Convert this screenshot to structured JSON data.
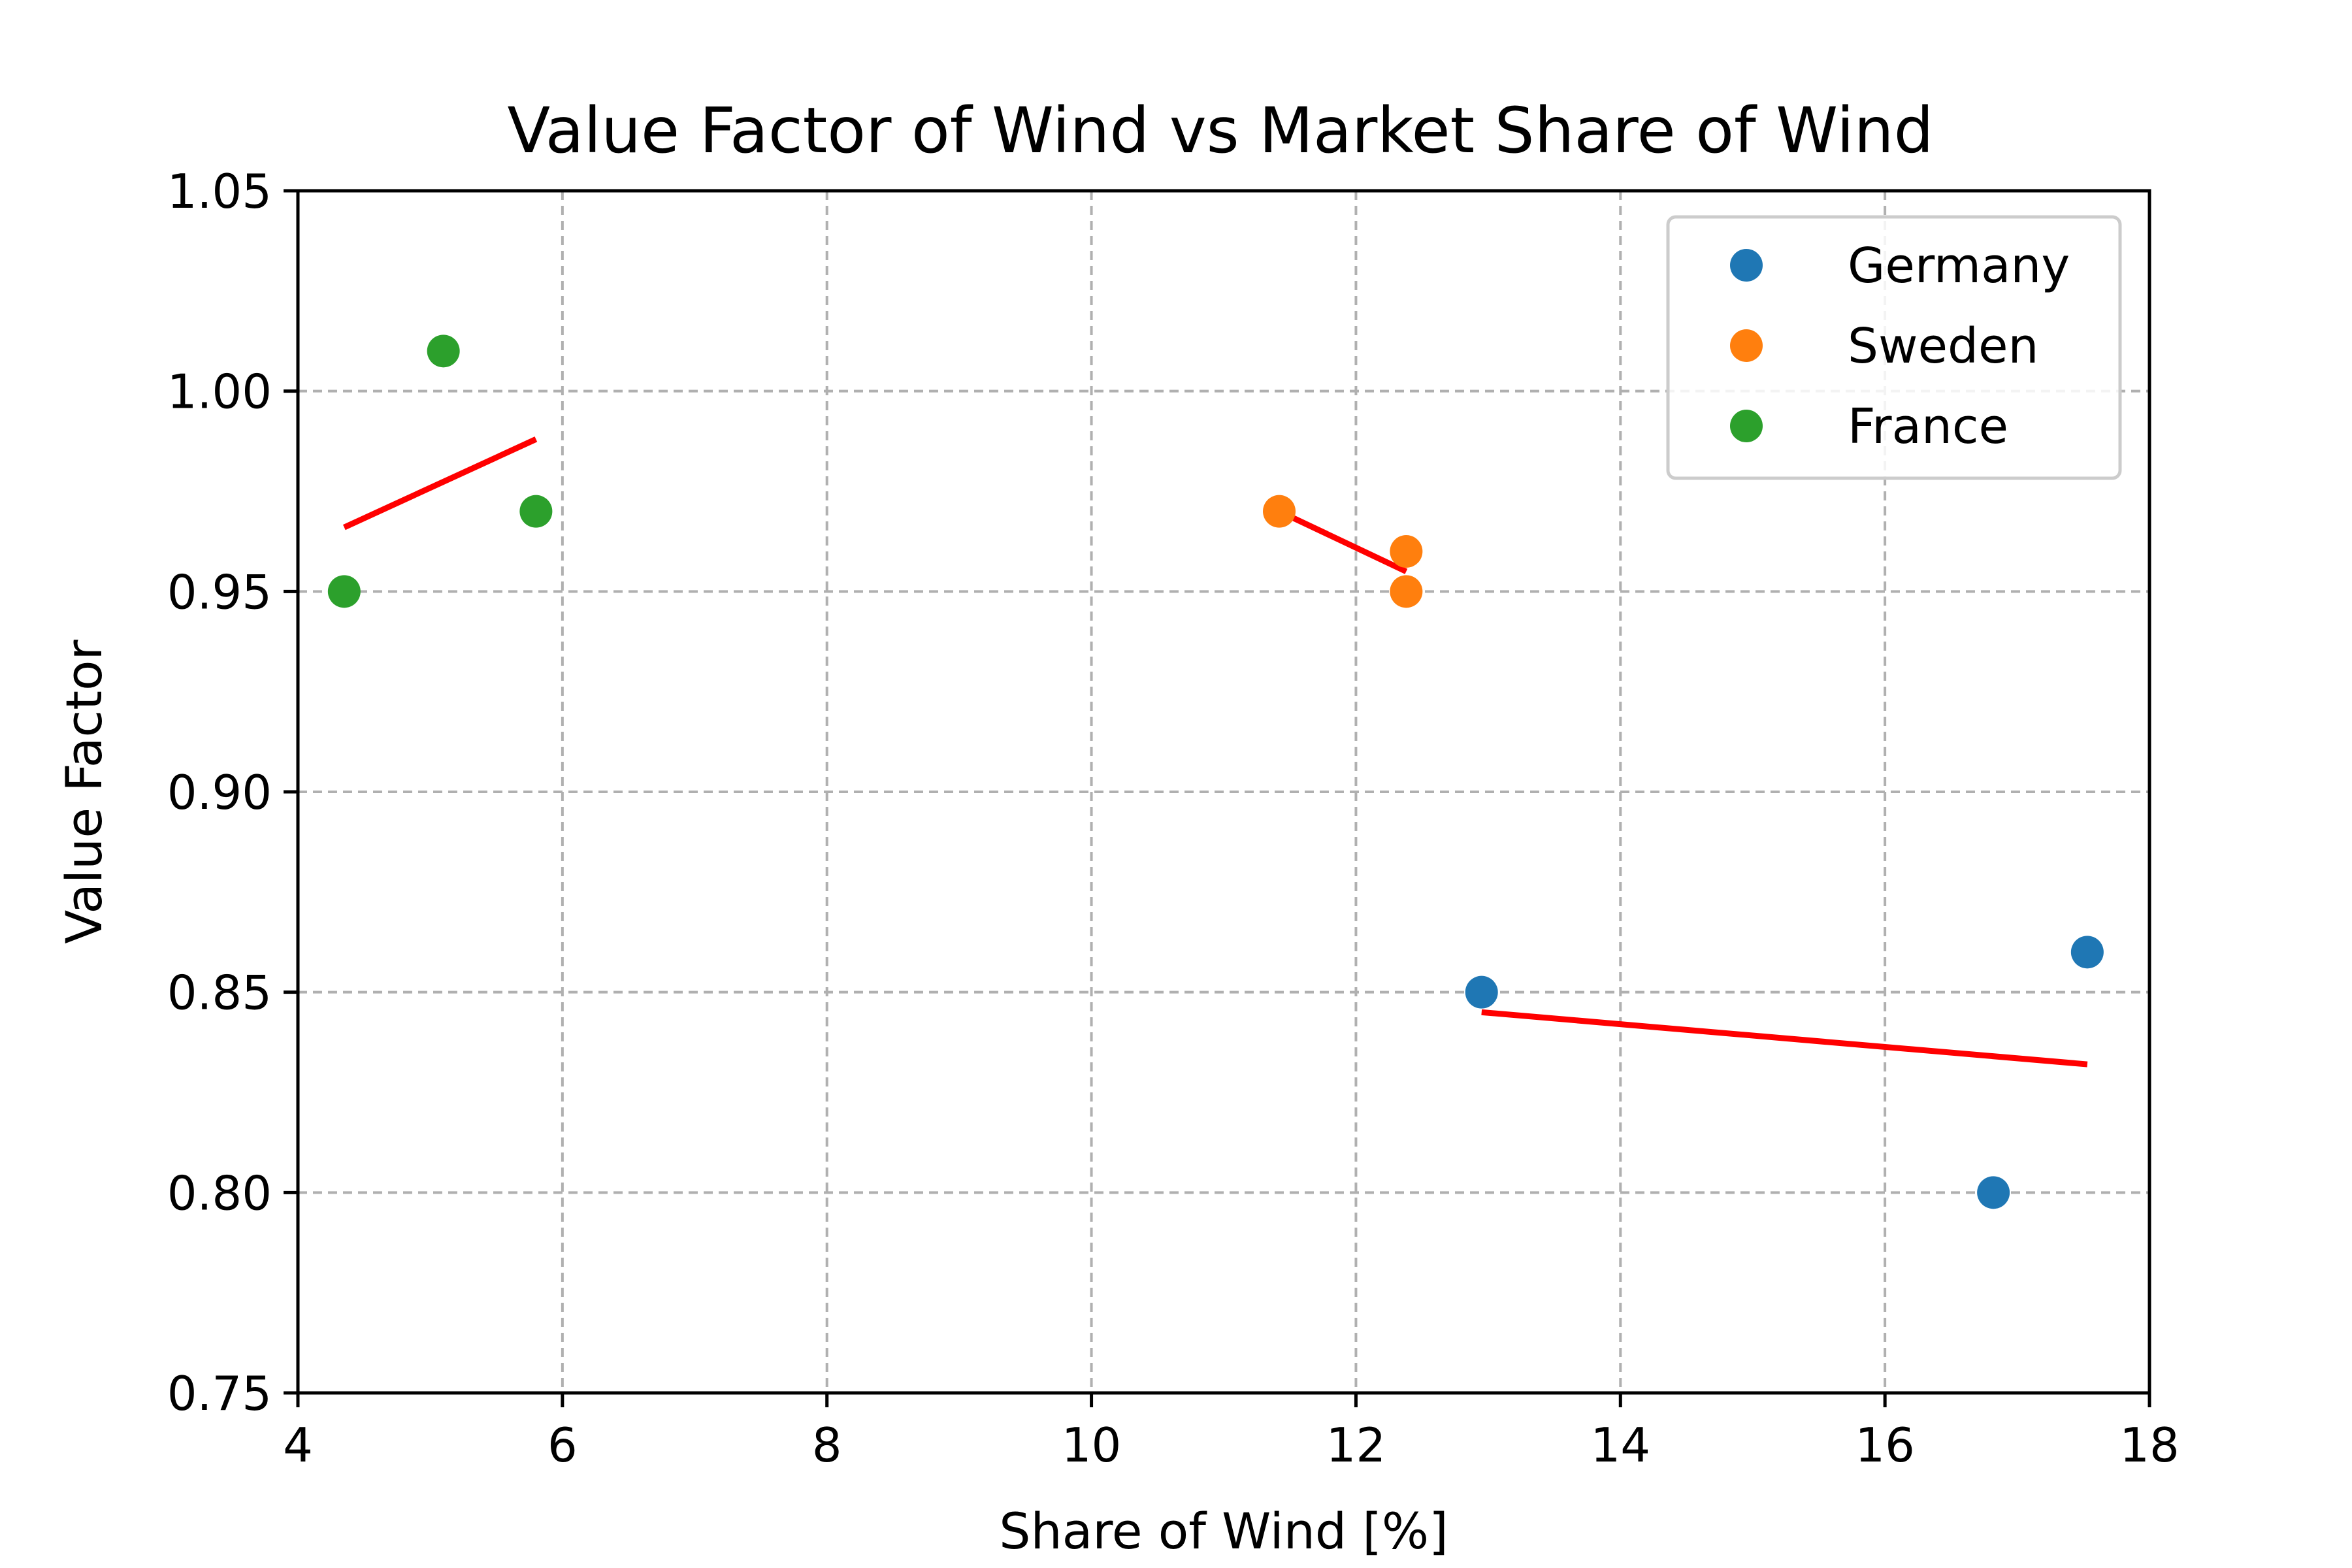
{
  "chart_data": {
    "type": "scatter",
    "title": "Value Factor of Wind vs Market Share of Wind",
    "xlabel": "Share of Wind [%]",
    "ylabel": "Value Factor",
    "xlim": [
      4,
      18
    ],
    "ylim": [
      0.75,
      1.05
    ],
    "xticks": [
      4,
      6,
      8,
      10,
      12,
      14,
      16,
      18
    ],
    "xtick_labels": [
      "4",
      "6",
      "8",
      "10",
      "12",
      "14",
      "16",
      "18"
    ],
    "yticks": [
      0.75,
      0.8,
      0.85,
      0.9,
      0.95,
      1.0,
      1.05
    ],
    "ytick_labels": [
      "0.75",
      "0.80",
      "0.85",
      "0.90",
      "0.95",
      "1.00",
      "1.05"
    ],
    "grid": true,
    "legend_position": "top-right",
    "series": [
      {
        "name": "Germany",
        "color": "#1f77b4",
        "x": [
          12.95,
          16.82,
          17.53
        ],
        "y": [
          0.85,
          0.8,
          0.86
        ],
        "trend": {
          "x": [
            12.95,
            17.53
          ],
          "y": [
            0.845,
            0.832
          ],
          "color": "#ff0000"
        }
      },
      {
        "name": "Sweden",
        "color": "#ff7f0e",
        "x": [
          11.42,
          12.38,
          12.38
        ],
        "y": [
          0.97,
          0.96,
          0.95
        ],
        "trend": {
          "x": [
            11.42,
            12.38
          ],
          "y": [
            0.97,
            0.955
          ],
          "color": "#ff0000"
        }
      },
      {
        "name": "France",
        "color": "#2ca02c",
        "x": [
          4.35,
          5.1,
          5.8
        ],
        "y": [
          0.95,
          1.01,
          0.97
        ],
        "trend": {
          "x": [
            4.35,
            5.8
          ],
          "y": [
            0.966,
            0.988
          ],
          "color": "#ff0000"
        }
      }
    ]
  }
}
